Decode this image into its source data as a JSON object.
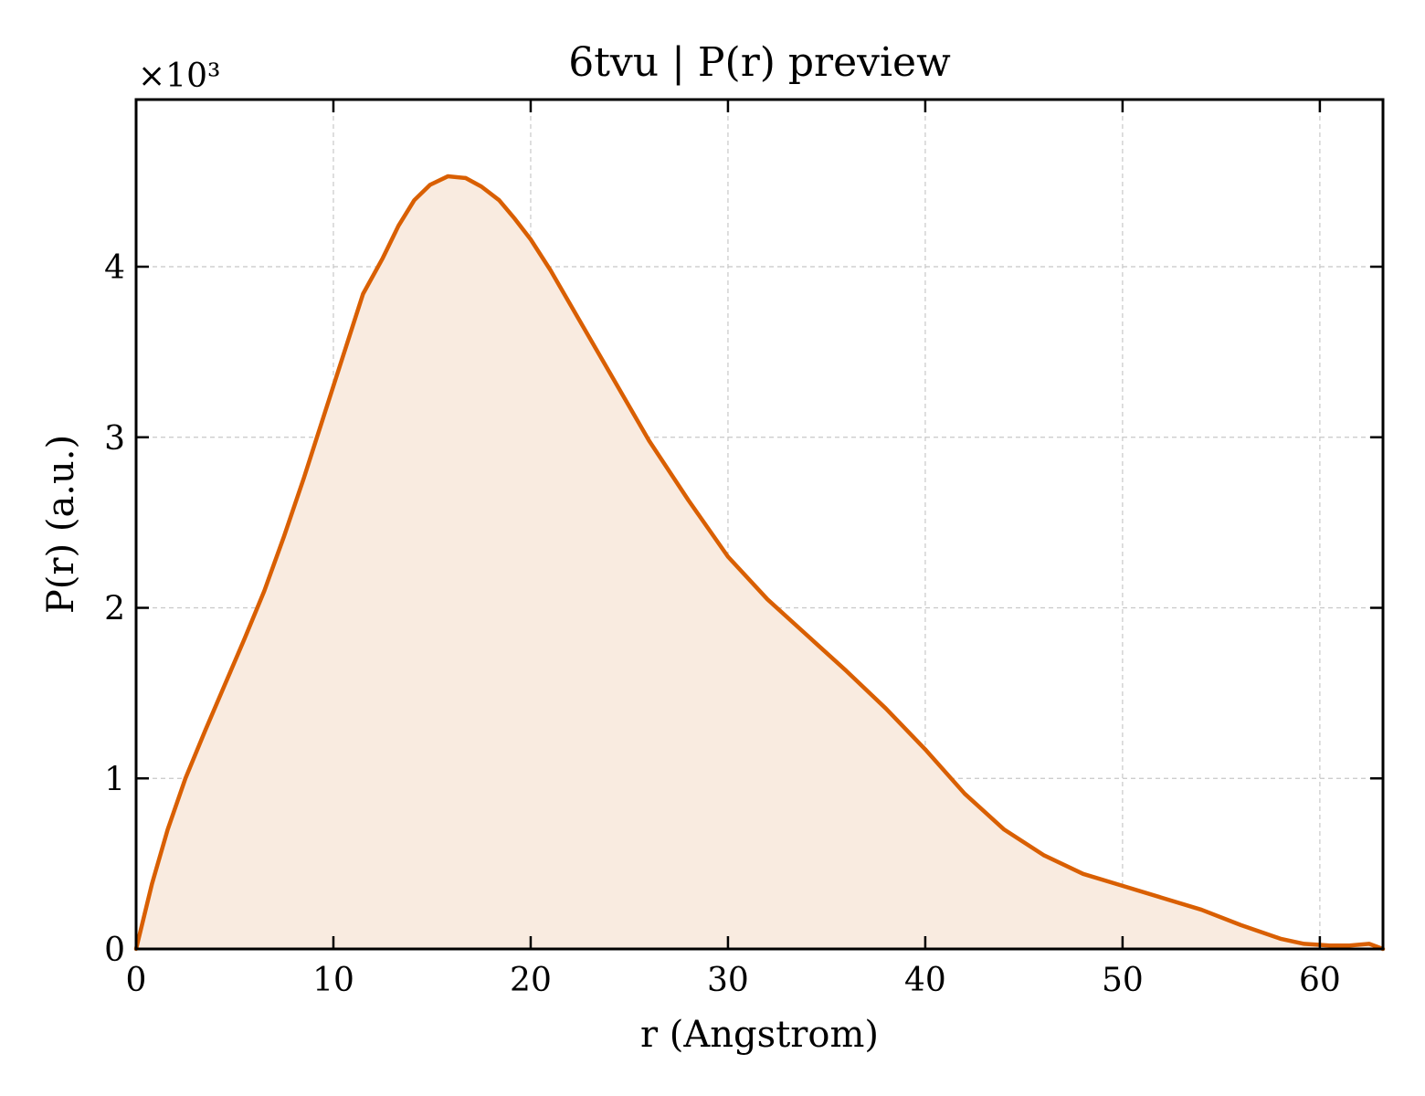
{
  "chart_data": {
    "type": "area",
    "title": "6tvu | P(r) preview",
    "xlabel": "r (Angstrom)",
    "ylabel": "P(r) (a.u.)",
    "y_multiplier_label": "×10³",
    "xlim": [
      0,
      63.2
    ],
    "ylim": [
      0,
      4.98
    ],
    "xticks": [
      0,
      10,
      20,
      30,
      40,
      50,
      60
    ],
    "yticks": [
      0,
      1,
      2,
      3,
      4
    ],
    "grid": true,
    "line_color": "#d95f02",
    "fill_color": "#f9ebe0",
    "series": [
      {
        "x": [
          0,
          0.8,
          1.6,
          2.5,
          3.5,
          4.5,
          5.5,
          6.5,
          7.5,
          8.5,
          9.5,
          10.5,
          11.5,
          12.5,
          13.3,
          14.1,
          14.9,
          15.8,
          16.7,
          17.5,
          18.4,
          19.2,
          20.0,
          21.0,
          22.0,
          24.0,
          26.0,
          28.0,
          30.0,
          32.0,
          34.0,
          36.0,
          38.0,
          40.0,
          42.0,
          44.0,
          46.0,
          48.0,
          50.0,
          52.0,
          54.0,
          56.0,
          58.0,
          59.2,
          60.5,
          61.5,
          62.5,
          63.2
        ],
        "y": [
          0.0,
          0.38,
          0.7,
          1.0,
          1.28,
          1.55,
          1.82,
          2.1,
          2.42,
          2.76,
          3.12,
          3.48,
          3.84,
          4.05,
          4.24,
          4.39,
          4.48,
          4.53,
          4.52,
          4.47,
          4.39,
          4.28,
          4.16,
          3.98,
          3.78,
          3.38,
          2.98,
          2.63,
          2.3,
          2.05,
          1.84,
          1.63,
          1.41,
          1.17,
          0.91,
          0.7,
          0.55,
          0.44,
          0.37,
          0.3,
          0.23,
          0.14,
          0.06,
          0.03,
          0.02,
          0.02,
          0.03,
          0.0
        ]
      }
    ]
  }
}
